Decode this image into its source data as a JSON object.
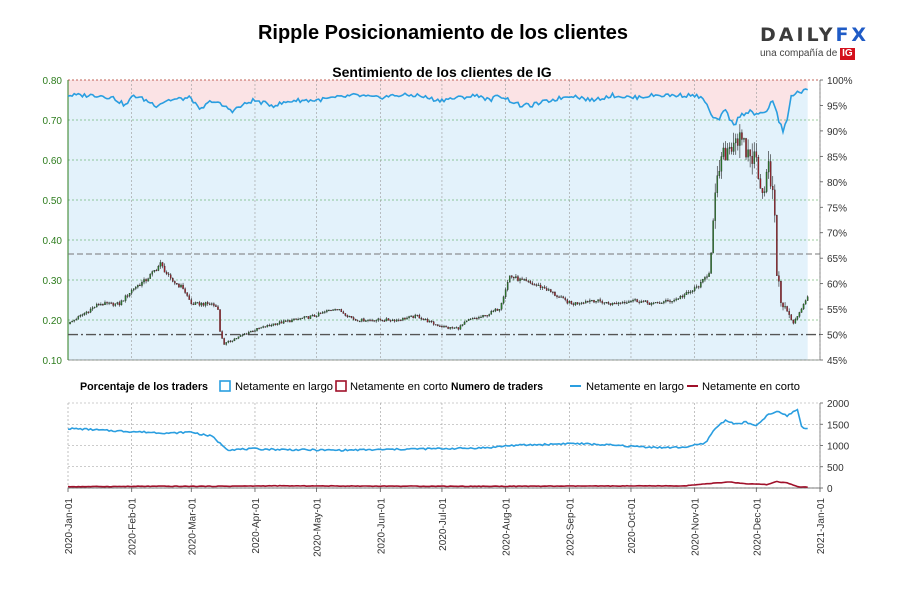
{
  "title": "Ripple Posicionamiento de los clientes",
  "brand": {
    "name_left": "DAILY",
    "name_right": "FX",
    "tagline": "una compañía de",
    "tagline_logo": "IG"
  },
  "colors": {
    "long": "#2a9ee0",
    "short": "#a0102a",
    "price_axis": "#2e7d1e",
    "fill_long": "#e3f2fb",
    "fill_short": "#fbe3e5"
  },
  "chart_data": [
    {
      "type": "candlestick+area",
      "title": "Sentimiento de los clientes de IG",
      "price_ticks": [
        "0.80",
        "0.70",
        "0.60",
        "0.50",
        "0.40",
        "0.30",
        "0.20",
        "0.10"
      ],
      "price_ylim": [
        0.1,
        0.8
      ],
      "pct_ticks": [
        "100%",
        "95%",
        "90%",
        "85%",
        "80%",
        "75%",
        "70%",
        "65%",
        "60%",
        "55%",
        "50%",
        "45%"
      ],
      "pct_ylim": [
        45,
        100
      ],
      "reference_line_pct": 50,
      "reference_line_price": 0.365,
      "price_keypoints": [
        [
          0,
          0.19
        ],
        [
          6,
          0.21
        ],
        [
          15,
          0.24
        ],
        [
          25,
          0.24
        ],
        [
          32,
          0.28
        ],
        [
          38,
          0.3
        ],
        [
          45,
          0.34
        ],
        [
          50,
          0.3
        ],
        [
          56,
          0.28
        ],
        [
          60,
          0.24
        ],
        [
          70,
          0.24
        ],
        [
          73,
          0.23
        ],
        [
          74,
          0.17
        ],
        [
          76,
          0.14
        ],
        [
          80,
          0.15
        ],
        [
          88,
          0.17
        ],
        [
          100,
          0.19
        ],
        [
          110,
          0.2
        ],
        [
          120,
          0.21
        ],
        [
          130,
          0.23
        ],
        [
          140,
          0.2
        ],
        [
          160,
          0.2
        ],
        [
          170,
          0.21
        ],
        [
          178,
          0.19
        ],
        [
          185,
          0.18
        ],
        [
          190,
          0.18
        ],
        [
          195,
          0.2
        ],
        [
          203,
          0.21
        ],
        [
          210,
          0.23
        ],
        [
          215,
          0.31
        ],
        [
          220,
          0.3
        ],
        [
          232,
          0.28
        ],
        [
          238,
          0.26
        ],
        [
          245,
          0.24
        ],
        [
          255,
          0.25
        ],
        [
          265,
          0.24
        ],
        [
          275,
          0.25
        ],
        [
          285,
          0.24
        ],
        [
          295,
          0.25
        ],
        [
          303,
          0.27
        ],
        [
          308,
          0.29
        ],
        [
          312,
          0.32
        ],
        [
          315,
          0.5
        ],
        [
          317,
          0.58
        ],
        [
          320,
          0.62
        ],
        [
          325,
          0.66
        ],
        [
          330,
          0.62
        ],
        [
          335,
          0.6
        ],
        [
          338,
          0.52
        ],
        [
          341,
          0.58
        ],
        [
          344,
          0.47
        ],
        [
          345,
          0.32
        ],
        [
          347,
          0.25
        ],
        [
          350,
          0.22
        ],
        [
          353,
          0.19
        ],
        [
          356,
          0.22
        ],
        [
          358,
          0.24
        ],
        [
          360,
          0.26
        ]
      ],
      "pct_long_keypoints": [
        [
          0,
          97
        ],
        [
          15,
          97
        ],
        [
          22,
          96.5
        ],
        [
          28,
          95
        ],
        [
          32,
          97
        ],
        [
          38,
          96
        ],
        [
          43,
          95
        ],
        [
          48,
          96
        ],
        [
          60,
          96.5
        ],
        [
          64,
          94
        ],
        [
          70,
          96
        ],
        [
          75,
          95
        ],
        [
          80,
          94
        ],
        [
          90,
          96
        ],
        [
          100,
          95
        ],
        [
          110,
          96
        ],
        [
          120,
          96
        ],
        [
          130,
          96.5
        ],
        [
          140,
          97
        ],
        [
          150,
          96.5
        ],
        [
          160,
          97
        ],
        [
          170,
          97
        ],
        [
          180,
          96
        ],
        [
          190,
          96.5
        ],
        [
          200,
          97
        ],
        [
          205,
          96
        ],
        [
          210,
          97
        ],
        [
          220,
          95
        ],
        [
          225,
          95
        ],
        [
          235,
          96
        ],
        [
          245,
          97
        ],
        [
          255,
          96
        ],
        [
          265,
          97
        ],
        [
          275,
          96.5
        ],
        [
          285,
          97
        ],
        [
          295,
          97
        ],
        [
          305,
          97
        ],
        [
          310,
          96
        ],
        [
          313,
          93
        ],
        [
          316,
          92
        ],
        [
          320,
          94
        ],
        [
          324,
          91
        ],
        [
          327,
          93
        ],
        [
          332,
          94
        ],
        [
          335,
          93
        ],
        [
          340,
          94
        ],
        [
          343,
          96
        ],
        [
          346,
          92
        ],
        [
          348,
          90
        ],
        [
          350,
          92
        ],
        [
          352,
          97
        ],
        [
          355,
          97.5
        ],
        [
          360,
          98
        ]
      ]
    },
    {
      "type": "line",
      "title": "Numero de traders",
      "y_ticks": [
        "2000",
        "1500",
        "1000",
        "500",
        "0"
      ],
      "ylim": [
        0,
        2000
      ],
      "legend_pct_title": "Porcentaje de los traders",
      "legend_traders_title": "Numero de traders",
      "legend_long": "Netamente en largo",
      "legend_short": "Netamente en corto",
      "long_keypoints": [
        [
          0,
          1400
        ],
        [
          10,
          1380
        ],
        [
          20,
          1350
        ],
        [
          35,
          1320
        ],
        [
          50,
          1290
        ],
        [
          60,
          1320
        ],
        [
          65,
          1260
        ],
        [
          70,
          1220
        ],
        [
          74,
          1050
        ],
        [
          78,
          900
        ],
        [
          90,
          920
        ],
        [
          110,
          900
        ],
        [
          130,
          890
        ],
        [
          150,
          900
        ],
        [
          170,
          920
        ],
        [
          190,
          930
        ],
        [
          205,
          950
        ],
        [
          215,
          1000
        ],
        [
          230,
          1020
        ],
        [
          245,
          1050
        ],
        [
          260,
          1020
        ],
        [
          275,
          980
        ],
        [
          290,
          950
        ],
        [
          300,
          960
        ],
        [
          310,
          1050
        ],
        [
          315,
          1400
        ],
        [
          320,
          1600
        ],
        [
          325,
          1500
        ],
        [
          330,
          1550
        ],
        [
          335,
          1450
        ],
        [
          340,
          1700
        ],
        [
          345,
          1800
        ],
        [
          350,
          1700
        ],
        [
          355,
          1850
        ],
        [
          357,
          1450
        ],
        [
          360,
          1380
        ]
      ],
      "short_keypoints": [
        [
          0,
          30
        ],
        [
          40,
          40
        ],
        [
          70,
          40
        ],
        [
          100,
          50
        ],
        [
          200,
          40
        ],
        [
          300,
          50
        ],
        [
          316,
          120
        ],
        [
          322,
          140
        ],
        [
          330,
          100
        ],
        [
          340,
          80
        ],
        [
          345,
          150
        ],
        [
          350,
          120
        ],
        [
          355,
          30
        ],
        [
          360,
          20
        ]
      ]
    }
  ],
  "x_axis": {
    "ticks": [
      {
        "label": "2020-Jan-01",
        "day": 0
      },
      {
        "label": "2020-Feb-01",
        "day": 31
      },
      {
        "label": "2020-Mar-01",
        "day": 60
      },
      {
        "label": "2020-Apr-01",
        "day": 91
      },
      {
        "label": "2020-May-01",
        "day": 121
      },
      {
        "label": "2020-Jun-01",
        "day": 152
      },
      {
        "label": "2020-Jul-01",
        "day": 182
      },
      {
        "label": "2020-Aug-01",
        "day": 213
      },
      {
        "label": "2020-Sep-01",
        "day": 244
      },
      {
        "label": "2020-Oct-01",
        "day": 274
      },
      {
        "label": "2020-Nov-01",
        "day": 305
      },
      {
        "label": "2020-Dec-01",
        "day": 335
      },
      {
        "label": "2021-Jan-01",
        "day": 366
      }
    ],
    "xlim": [
      0,
      366
    ]
  }
}
